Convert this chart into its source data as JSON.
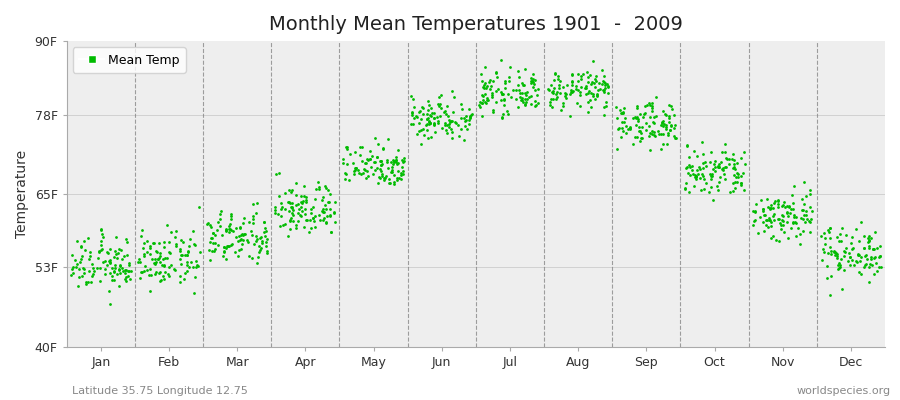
{
  "title": "Monthly Mean Temperatures 1901  -  2009",
  "ylabel": "Temperature",
  "footer_left": "Latitude 35.75 Longitude 12.75",
  "footer_right": "worldspecies.org",
  "ylim": [
    40,
    90
  ],
  "yticks": [
    40,
    53,
    65,
    78,
    90
  ],
  "ytick_labels": [
    "40F",
    "53F",
    "65F",
    "78F",
    "90F"
  ],
  "months": [
    "Jan",
    "Feb",
    "Mar",
    "Apr",
    "May",
    "Jun",
    "Jul",
    "Aug",
    "Sep",
    "Oct",
    "Nov",
    "Dec"
  ],
  "dot_color": "#00BB00",
  "bg_color": "#FFFFFF",
  "plot_bg_color": "#EEEEEE",
  "n_years": 109,
  "mean_temps": [
    53.5,
    54.2,
    57.8,
    62.5,
    69.8,
    77.5,
    81.5,
    82.0,
    76.5,
    68.5,
    61.5,
    55.5
  ],
  "std_temps": [
    2.2,
    2.2,
    2.2,
    2.2,
    1.8,
    1.8,
    1.6,
    1.6,
    1.8,
    2.2,
    2.2,
    2.2
  ],
  "title_fontsize": 14,
  "axis_label_fontsize": 10,
  "tick_fontsize": 9,
  "legend_fontsize": 9,
  "footer_fontsize": 8,
  "dot_size": 4
}
